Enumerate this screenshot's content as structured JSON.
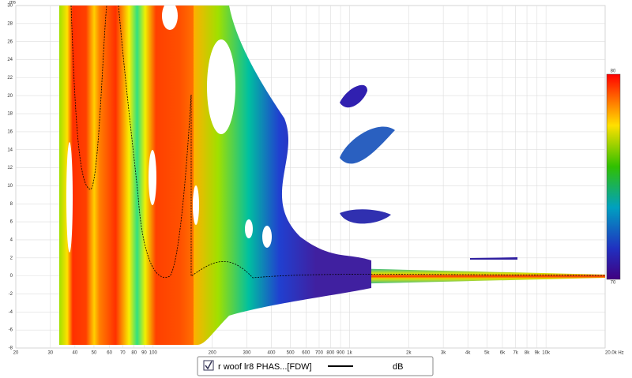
{
  "chart_data": {
    "type": "spectrogram",
    "y_unit": "ms",
    "xlim": [
      20,
      20000
    ],
    "ylim": [
      -8,
      30
    ],
    "xscale": "log",
    "xticks": [
      20,
      30,
      40,
      50,
      60,
      70,
      80,
      90,
      100,
      200,
      300,
      400,
      500,
      600,
      700,
      800,
      900,
      {
        "value": 1000,
        "label": "1k"
      },
      {
        "value": 2000,
        "label": "2k"
      },
      {
        "value": 3000,
        "label": "3k"
      },
      {
        "value": 4000,
        "label": "4k"
      },
      {
        "value": 5000,
        "label": "5k"
      },
      {
        "value": 6000,
        "label": "6k"
      },
      {
        "value": 7000,
        "label": "7k"
      },
      {
        "value": 8000,
        "label": "8k"
      },
      {
        "value": 9000,
        "label": "9k"
      },
      {
        "value": 10000,
        "label": "10k"
      },
      {
        "value": 20000,
        "label": "20.0k Hz"
      }
    ],
    "yticks": [
      -8,
      -6,
      -4,
      -2,
      0,
      2,
      4,
      6,
      8,
      10,
      12,
      14,
      16,
      18,
      20,
      22,
      24,
      26,
      28,
      30
    ],
    "grid": true,
    "colorbar": {
      "ticks": [
        70,
        80
      ]
    },
    "legend": {
      "name": "r woof lr8 PHAS...[FDW]",
      "unit": "dB"
    }
  }
}
